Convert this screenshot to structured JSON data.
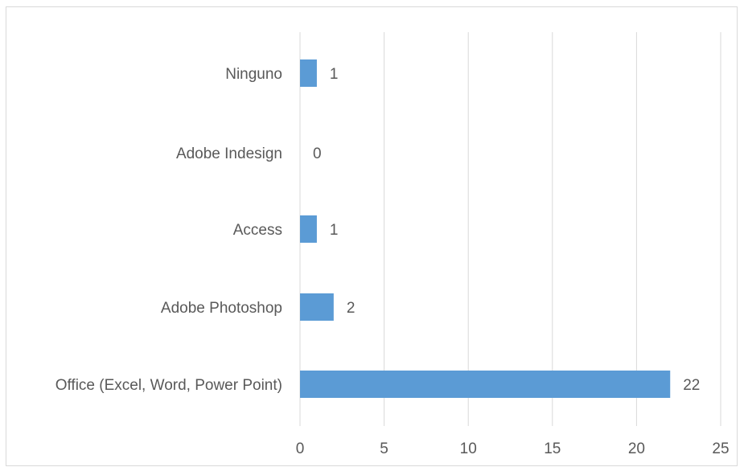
{
  "chart_data": {
    "type": "bar",
    "orientation": "horizontal",
    "categories": [
      "Ninguno",
      "Adobe Indesign",
      "Access",
      "Adobe Photoshop",
      "Office (Excel, Word, Power Point)"
    ],
    "values": [
      1,
      0,
      1,
      2,
      22
    ],
    "data_labels": [
      "1",
      "0",
      "1",
      "2",
      "22"
    ],
    "xlim": [
      0,
      25
    ],
    "x_ticks": [
      0,
      5,
      10,
      15,
      20,
      25
    ],
    "x_tick_labels": [
      "0",
      "5",
      "10",
      "15",
      "20",
      "25"
    ],
    "grid": true,
    "legend": "none",
    "bar_color": "#5b9bd5",
    "grid_color": "#d9d9d9"
  }
}
